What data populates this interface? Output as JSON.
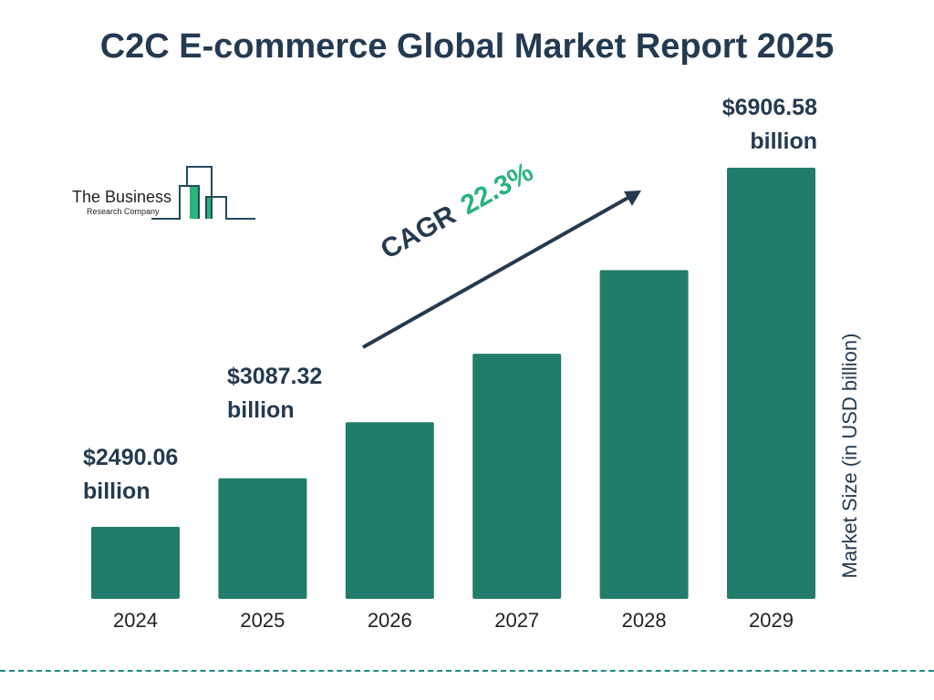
{
  "chart_data": {
    "type": "bar",
    "title": "C2C E-commerce Global Market Report 2025",
    "categories": [
      "2024",
      "2025",
      "2026",
      "2027",
      "2028",
      "2029"
    ],
    "values": [
      2490.06,
      3087.32,
      3775.8,
      4617.8,
      5647.6,
      6906.58
    ],
    "data_labels": [
      {
        "category": "2024",
        "value": "$2490.06",
        "unit": "billion"
      },
      {
        "category": "2025",
        "value": "$3087.32",
        "unit": "billion"
      },
      {
        "category": "2029",
        "value": "$6906.58",
        "unit": "billion"
      }
    ],
    "xlabel": "",
    "ylabel": "Market Size (in USD billion)",
    "annotation": {
      "label": "CAGR",
      "value": "22.3%"
    },
    "grid": false,
    "bar_color": "#217c6b",
    "accent_color": "#2bb37c",
    "text_color": "#233a51"
  },
  "logo": {
    "line1": "The Business",
    "line2": "Research Company"
  }
}
